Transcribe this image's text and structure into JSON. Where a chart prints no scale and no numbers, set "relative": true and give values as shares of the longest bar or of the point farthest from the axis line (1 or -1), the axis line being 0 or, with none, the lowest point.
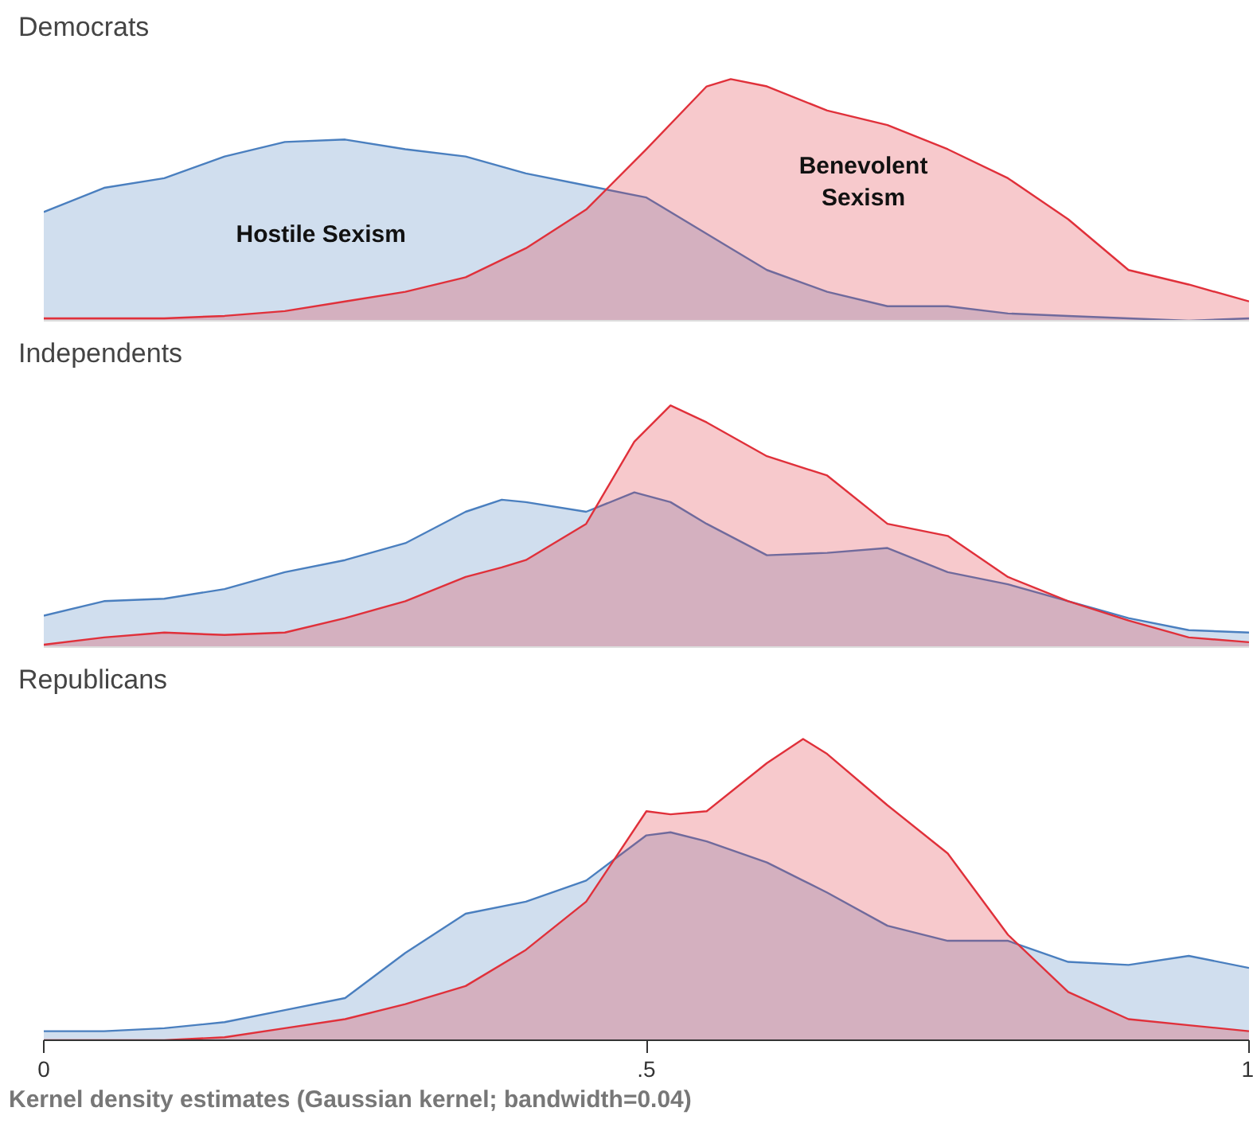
{
  "chart_data": [
    {
      "type": "area",
      "title": "Democrats",
      "relative": true,
      "xlim": [
        0,
        1
      ],
      "tick_labels": false,
      "grid": false,
      "x": [
        0,
        0.05,
        0.1,
        0.15,
        0.2,
        0.25,
        0.3,
        0.35,
        0.4,
        0.45,
        0.5,
        0.55,
        0.57,
        0.6,
        0.65,
        0.7,
        0.75,
        0.8,
        0.85,
        0.9,
        0.95,
        1
      ],
      "series": [
        {
          "name": "Hostile Sexism",
          "color": "#4a7fbf",
          "values": [
            0.45,
            0.55,
            0.59,
            0.68,
            0.74,
            0.75,
            0.71,
            0.68,
            0.61,
            0.56,
            0.51,
            0.36,
            0.3,
            0.21,
            0.12,
            0.06,
            0.06,
            0.03,
            0.02,
            0.01,
            0.0,
            0.01
          ]
        },
        {
          "name": "Benevolent\nSexism",
          "color": "#e0303a",
          "values": [
            0.01,
            0.01,
            0.01,
            0.02,
            0.04,
            0.08,
            0.12,
            0.18,
            0.3,
            0.46,
            0.71,
            0.97,
            1.0,
            0.97,
            0.87,
            0.81,
            0.71,
            0.59,
            0.42,
            0.21,
            0.15,
            0.08
          ]
        }
      ]
    },
    {
      "type": "area",
      "title": "Independents",
      "relative": true,
      "xlim": [
        0,
        1
      ],
      "tick_labels": false,
      "grid": false,
      "x": [
        0,
        0.05,
        0.1,
        0.15,
        0.2,
        0.25,
        0.3,
        0.35,
        0.38,
        0.4,
        0.45,
        0.49,
        0.52,
        0.55,
        0.6,
        0.65,
        0.7,
        0.75,
        0.8,
        0.85,
        0.9,
        0.95,
        1
      ],
      "series": [
        {
          "color": "#4a7fbf",
          "values": [
            0.13,
            0.19,
            0.2,
            0.24,
            0.31,
            0.36,
            0.43,
            0.56,
            0.61,
            0.6,
            0.56,
            0.64,
            0.6,
            0.51,
            0.38,
            0.39,
            0.41,
            0.31,
            0.26,
            0.19,
            0.12,
            0.07,
            0.06
          ]
        },
        {
          "color": "#e0303a",
          "values": [
            0.01,
            0.04,
            0.06,
            0.05,
            0.06,
            0.12,
            0.19,
            0.29,
            0.33,
            0.36,
            0.51,
            0.85,
            1.0,
            0.93,
            0.79,
            0.71,
            0.51,
            0.46,
            0.29,
            0.19,
            0.11,
            0.04,
            0.02
          ]
        }
      ]
    },
    {
      "type": "area",
      "title": "Republicans",
      "relative": true,
      "xlim": [
        0,
        1
      ],
      "xticks": [
        0,
        {
          "value": 0.5,
          "label": ".5"
        },
        1
      ],
      "tick_labels": "x",
      "grid": false,
      "x": [
        0,
        0.05,
        0.1,
        0.15,
        0.2,
        0.25,
        0.3,
        0.35,
        0.4,
        0.45,
        0.5,
        0.52,
        0.55,
        0.6,
        0.63,
        0.65,
        0.7,
        0.75,
        0.8,
        0.85,
        0.9,
        0.95,
        1
      ],
      "series": [
        {
          "color": "#4a7fbf",
          "values": [
            0.03,
            0.03,
            0.04,
            0.06,
            0.1,
            0.14,
            0.29,
            0.42,
            0.46,
            0.53,
            0.68,
            0.69,
            0.66,
            0.59,
            0.53,
            0.49,
            0.38,
            0.33,
            0.33,
            0.26,
            0.25,
            0.28,
            0.24
          ]
        },
        {
          "color": "#e0303a",
          "values": [
            0.0,
            0.0,
            0.0,
            0.01,
            0.04,
            0.07,
            0.12,
            0.18,
            0.3,
            0.46,
            0.76,
            0.75,
            0.76,
            0.92,
            1.0,
            0.95,
            0.78,
            0.62,
            0.35,
            0.16,
            0.07,
            0.05,
            0.03
          ]
        }
      ],
      "annotations": [
        "Kernel density estimates (Gaussian kernel; bandwidth=0.04)"
      ]
    }
  ]
}
